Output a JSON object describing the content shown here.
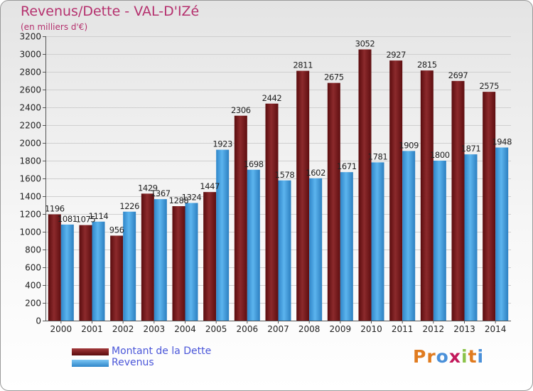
{
  "header": {
    "title": "Revenus/Dette - VAL-D'IZé",
    "subtitle": "(en milliers d'€)"
  },
  "legend": {
    "items": [
      {
        "label": "Montant de la Dette",
        "color": "#7a1b1d"
      },
      {
        "label": "Revenus",
        "color": "#3f9fe2"
      }
    ]
  },
  "brand": {
    "letters": [
      "P",
      "r",
      "o",
      "x",
      "i",
      "t",
      "i"
    ],
    "colors": [
      "#e07b1f",
      "#e07b1f",
      "#4a90d9",
      "#c2185b",
      "#8bc34a",
      "#e07b1f",
      "#4a90d9"
    ]
  },
  "chart_data": {
    "type": "bar",
    "title": "Revenus/Dette - VAL-D'IZé",
    "ylabel": "(en milliers d'€)",
    "xlabel": "",
    "ylim": [
      0,
      3200
    ],
    "yticks": [
      0,
      200,
      400,
      600,
      800,
      1000,
      1200,
      1400,
      1600,
      1800,
      2000,
      2200,
      2400,
      2600,
      2800,
      3000,
      3200
    ],
    "grid": true,
    "legend_position": "bottom-left",
    "categories": [
      "2000",
      "2001",
      "2002",
      "2003",
      "2004",
      "2005",
      "2006",
      "2007",
      "2008",
      "2009",
      "2010",
      "2011",
      "2012",
      "2013",
      "2014"
    ],
    "series": [
      {
        "name": "Montant de la Dette",
        "color": "#7a1b1d",
        "values": [
          1196,
          1075,
          956,
          1429,
          1288,
          1447,
          2306,
          2442,
          2811,
          2675,
          3052,
          2927,
          2815,
          2697,
          2575
        ],
        "labels": [
          "1196",
          "1075",
          "956",
          "1429",
          "1288",
          "1447",
          "2306",
          "2442",
          "2811",
          "2675",
          "3052",
          "2927",
          "2815",
          "2697",
          "2575"
        ]
      },
      {
        "name": "Revenus",
        "color": "#3f9fe2",
        "values": [
          1081,
          1114,
          1226,
          1367,
          1324,
          1923,
          1698,
          1578,
          1602,
          1671,
          1781,
          1909,
          1800,
          1871,
          1948
        ],
        "labels": [
          "1081",
          "1114",
          "1226",
          "1367",
          "1324",
          "1923",
          "1698",
          "1578",
          "1602",
          "1671",
          "1781",
          "1909",
          "1800",
          "1871",
          "1948"
        ]
      }
    ]
  }
}
